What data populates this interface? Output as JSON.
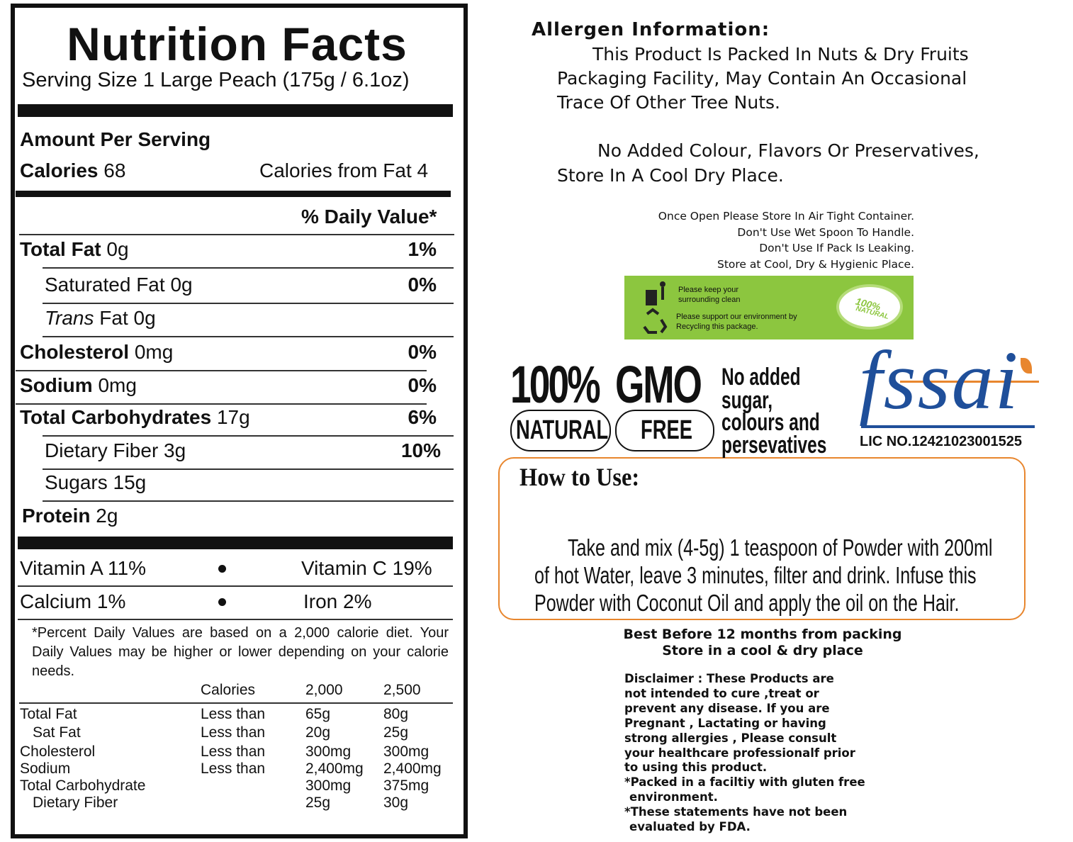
{
  "nutrition": {
    "title": "Nutrition Facts",
    "serving": "Serving Size 1 Large Peach (175g / 6.1oz)",
    "amount_per_serving": "Amount Per Serving",
    "calories_label": "Calories",
    "calories_value": "68",
    "calories_from_fat": "Calories from Fat 4",
    "daily_value_header": "% Daily Value*",
    "rows": [
      {
        "name": "Total Fat",
        "amount": "0g",
        "dv": "1%"
      },
      {
        "name": "Saturated Fat",
        "amount": "0g",
        "dv": "0%",
        "sub": true
      },
      {
        "name_em": "Trans",
        "name": "Fat",
        "amount": "0g",
        "sub": true
      },
      {
        "name": "Cholesterol",
        "amount": "0mg",
        "dv": "0%"
      },
      {
        "name": "Sodium",
        "amount": "0mg",
        "dv": "0%"
      },
      {
        "name": "Total Carbohydrates",
        "amount": "17g",
        "dv": "6%"
      },
      {
        "name": "Dietary Fiber",
        "amount": "3g",
        "dv": "10%",
        "sub": true
      },
      {
        "name": "Sugars",
        "amount": "15g",
        "sub": true
      },
      {
        "name": "Protein",
        "amount": "2g"
      }
    ],
    "vitamins": [
      [
        "Vitamin A 11%",
        "Vitamin C 19%"
      ],
      [
        "Calcium 1%",
        "Iron 2%"
      ]
    ],
    "footnote": "*Percent Daily Values are based on a 2,000 calorie diet. Your Daily Values may be higher or lower depending on your calorie needs.",
    "table_header": [
      "Calories",
      "2,000",
      "2,500"
    ],
    "table_rows": [
      {
        "nutrient": "Total Fat",
        "limit": "Less than",
        "v2000": "65g",
        "v2500": "80g"
      },
      {
        "nutrient": "Sat Fat",
        "limit": "Less than",
        "v2000": "20g",
        "v2500": "25g",
        "sub": true
      },
      {
        "nutrient": "Cholesterol",
        "limit": "Less than",
        "v2000": "300mg",
        "v2500": "300mg"
      },
      {
        "nutrient": "Sodium",
        "limit": "Less than",
        "v2000": "2,400mg",
        "v2500": "2,400mg"
      },
      {
        "nutrient": "Total Carbohydrate",
        "v2000": "300mg",
        "v2500": "375mg"
      },
      {
        "nutrient": "Dietary Fiber",
        "v2000": "25g",
        "v2500": "30g",
        "sub": true
      }
    ]
  },
  "allergen": {
    "title": "Allergen Information:",
    "lines": [
      "This Product Is Packed In Nuts & Dry Fruits",
      "Packaging Facility, May Contain An Occasional",
      "Trace Of Other Tree Nuts."
    ],
    "lines2": [
      "No Added Colour, Flavors Or Preservatives,",
      "Store In A Cool Dry Place."
    ]
  },
  "storage": [
    "Once Open Please Store In Air Tight Container.",
    "Don't Use Wet Spoon To Handle.",
    "Don't Use If Pack Is Leaking.",
    "Store at Cool, Dry & Hygienic Place."
  ],
  "eco": {
    "keep_clean": [
      "Please keep your",
      "surrounding clean"
    ],
    "recycle": [
      "Please support our environment by",
      "Recycling this package."
    ],
    "badge": [
      "100%",
      "NATURAL"
    ]
  },
  "badges": {
    "percent": "100%",
    "gmo": "GMO",
    "natural": "NATURAL",
    "free": "FREE",
    "no_added": [
      "No added",
      "sugar,",
      "colours and",
      "persevatives"
    ]
  },
  "fssai": {
    "logo": "fssai",
    "license": "LIC NO.12421023001525"
  },
  "how_to_use": {
    "title": "How to Use:",
    "lines": [
      "Take and mix (4-5g) 1 teaspoon of Powder with 200ml",
      "of hot Water, leave 3 minutes, filter and drink. Infuse this",
      "Powder with Coconut Oil and apply the oil on the Hair."
    ]
  },
  "best_before": [
    "Best Before 12 months from packing",
    "Store in a cool & dry place"
  ],
  "disclaimer": [
    "Disclaimer : These Products are",
    "not intended to cure ,treat or",
    "prevent any disease. If you are",
    "Pregnant , Lactating or having",
    "strong allergies , Please consult",
    "your healthcare professionalf prior",
    "to using this product.",
    "*Packed in a faciltiy with gluten free",
    "environment.",
    "*These statements have not been",
    "evaluated by FDA."
  ]
}
